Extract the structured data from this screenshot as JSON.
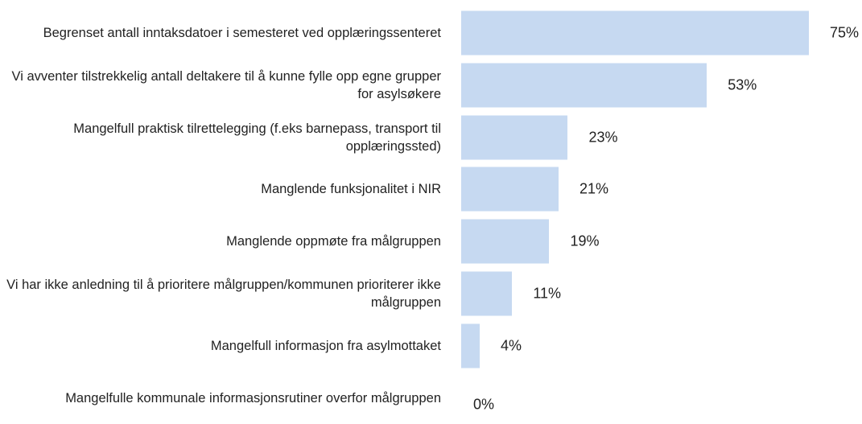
{
  "chart_data": {
    "type": "bar",
    "orientation": "horizontal",
    "categories": [
      "Begrenset antall inntaksdatoer i semesteret ved opplæringssenteret",
      "Vi avventer tilstrekkelig antall deltakere til å kunne fylle opp egne grupper for asylsøkere",
      "Mangelfull praktisk tilrettelegging (f.eks barnepass, transport til opplæringssted)",
      "Manglende funksjonalitet i NIR",
      "Manglende oppmøte fra målgruppen",
      "Vi har ikke anledning til å prioritere målgruppen/kommunen prioriterer ikke målgruppen",
      "Mangelfull informasjon fra asylmottaket",
      "Mangelfulle kommunale informasjonsrutiner overfor målgruppen"
    ],
    "values": [
      75,
      53,
      23,
      21,
      19,
      11,
      4,
      0
    ],
    "value_labels": [
      "75%",
      "53%",
      "23%",
      "21%",
      "19%",
      "11%",
      "4%",
      "0%"
    ],
    "color": "#c6d9f1",
    "xlim": [
      0,
      100
    ]
  }
}
